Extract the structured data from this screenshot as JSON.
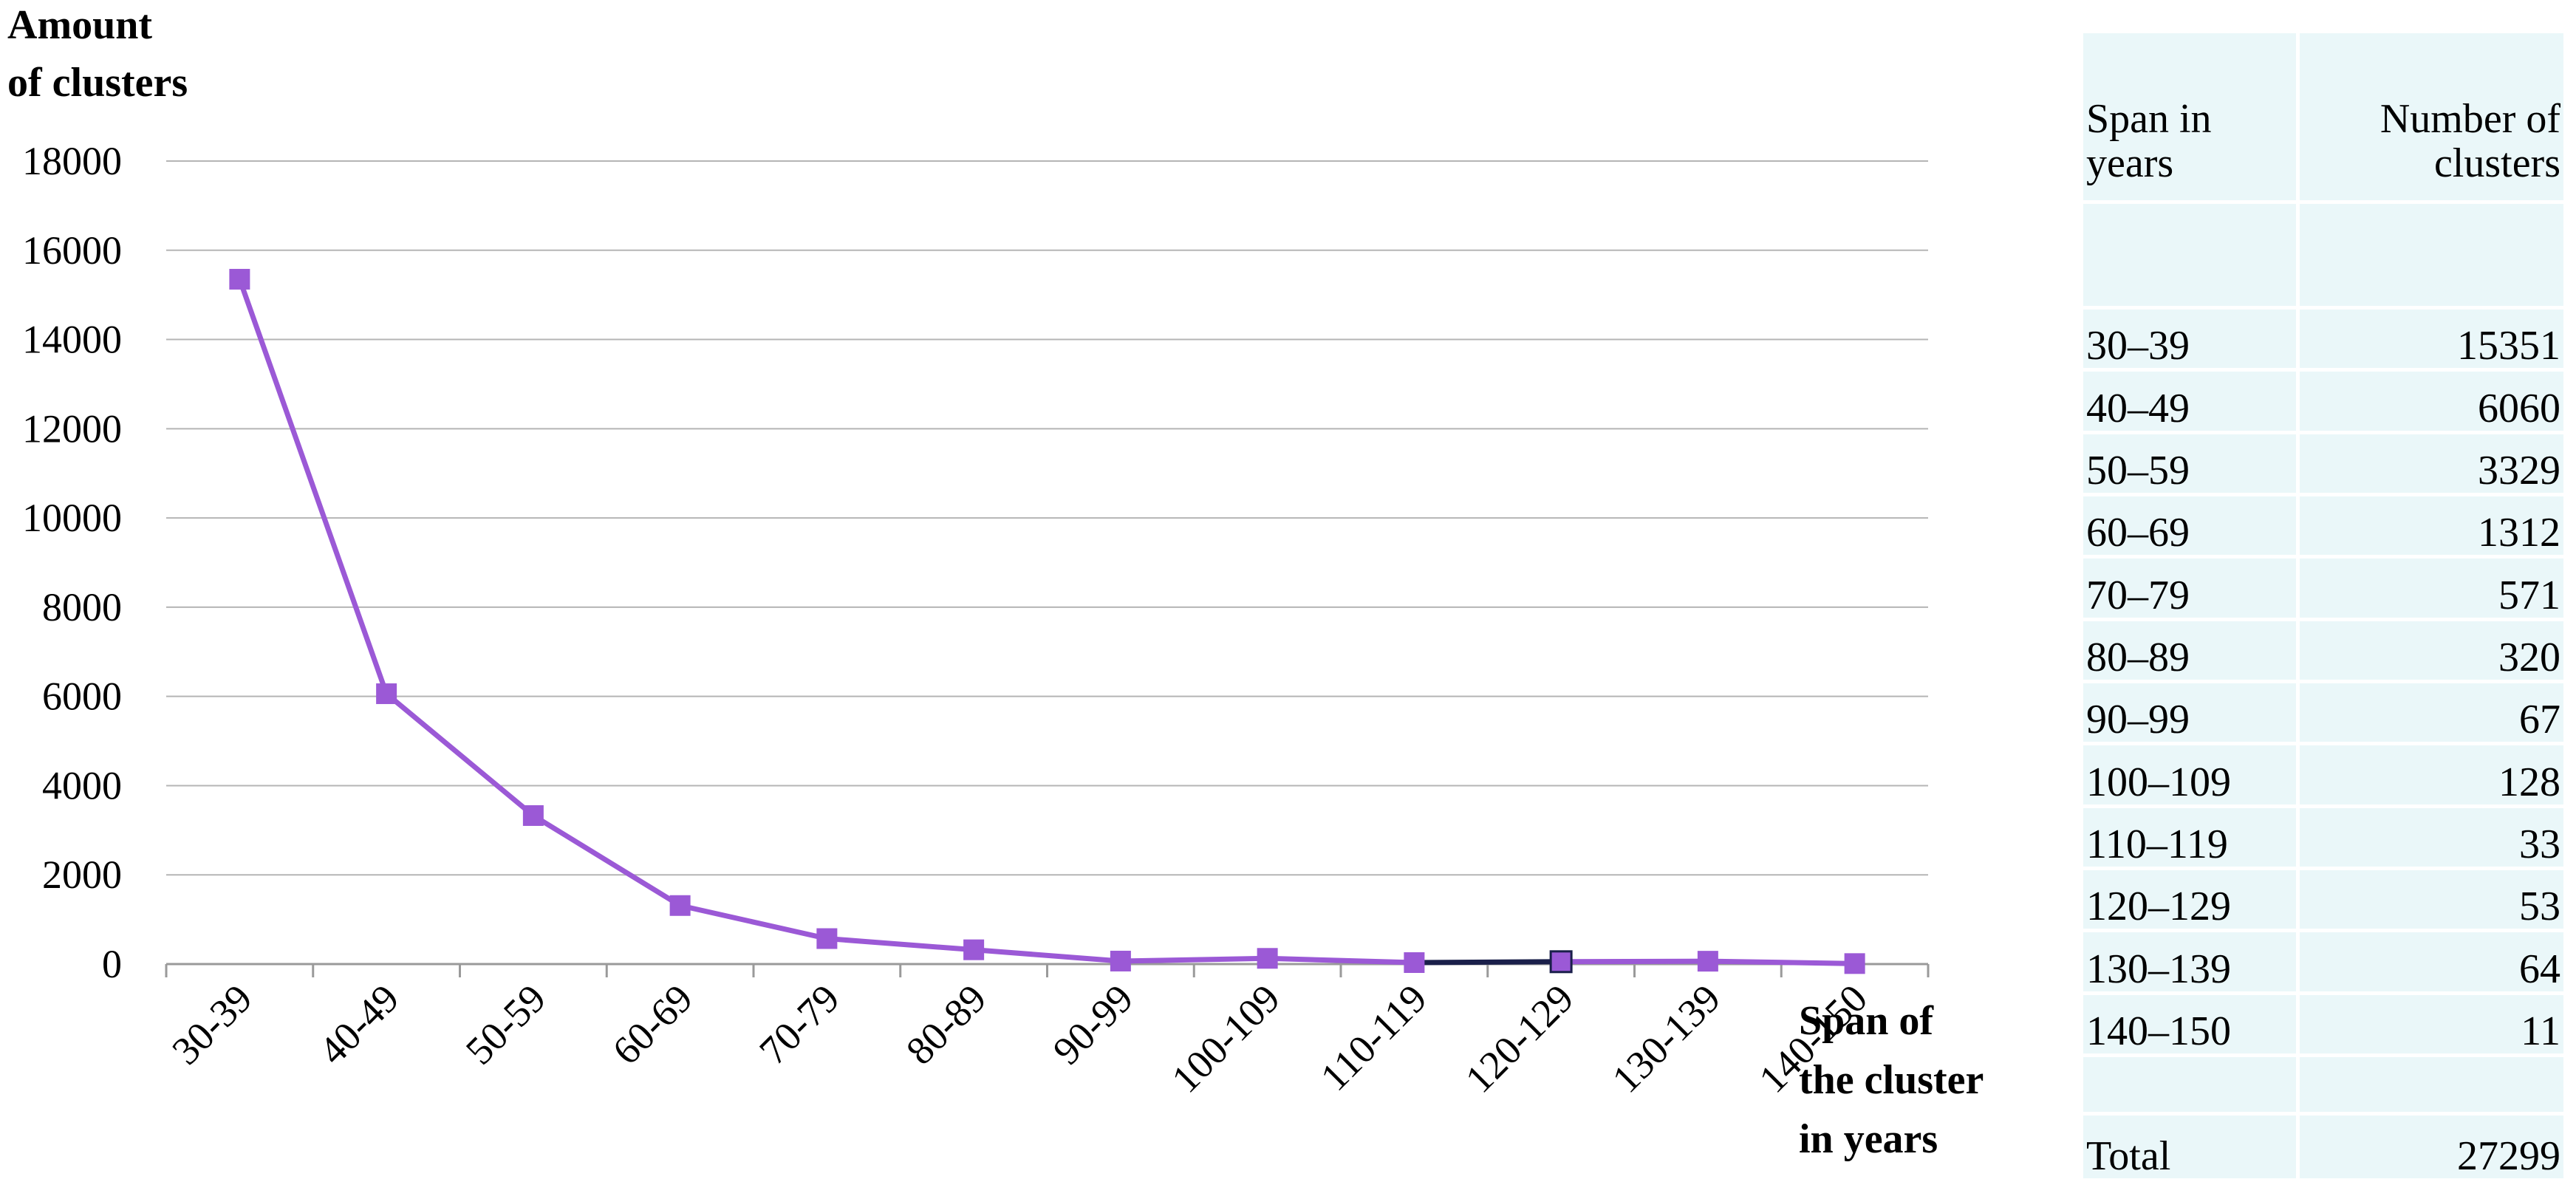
{
  "chart_data": {
    "type": "line",
    "ylabel_line1": "Amount",
    "ylabel_line2": "of clusters",
    "xlabel_line1": "Span of",
    "xlabel_line2": "the cluster",
    "xlabel_line3": "in years",
    "categories": [
      "30-39",
      "40-49",
      "50-59",
      "60-69",
      "70-79",
      "80-89",
      "90-99",
      "100-109",
      "110-119",
      "120-129",
      "130-139",
      "140-150"
    ],
    "values": [
      15351,
      6060,
      3329,
      1312,
      571,
      320,
      67,
      128,
      33,
      53,
      64,
      11
    ],
    "yticks": [
      "0",
      "2000",
      "4000",
      "6000",
      "8000",
      "10000",
      "12000",
      "14000",
      "16000",
      "18000"
    ],
    "ylim": [
      0,
      18000
    ],
    "grid": true,
    "line_color": "#9b59d6",
    "marker_color": "#9b59d6",
    "highlight_segment_color": "#1a1f4a",
    "legend": "none"
  },
  "table": {
    "header_span_line1": "Span in",
    "header_span_line2": "years",
    "header_count_line1": "Number of",
    "header_count_line2": "clusters",
    "rows": [
      {
        "span": "30–39",
        "count": "15351"
      },
      {
        "span": "40–49",
        "count": "6060"
      },
      {
        "span": "50–59",
        "count": "3329"
      },
      {
        "span": "60–69",
        "count": "1312"
      },
      {
        "span": "70–79",
        "count": "571"
      },
      {
        "span": "80–89",
        "count": "320"
      },
      {
        "span": "90–99",
        "count": "67"
      },
      {
        "span": "100–109",
        "count": "128"
      },
      {
        "span": "110–119",
        "count": "33"
      },
      {
        "span": "120–129",
        "count": "53"
      },
      {
        "span": "130–139",
        "count": "64"
      },
      {
        "span": "140–150",
        "count": "11"
      }
    ],
    "total_label": "Total",
    "total_value": "27299",
    "cell_color": "#eaf7f9"
  }
}
